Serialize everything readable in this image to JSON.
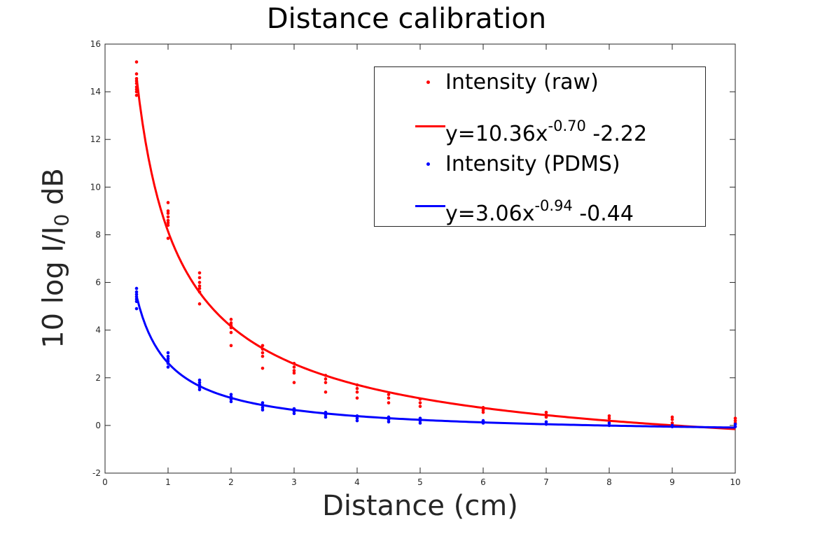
{
  "chart_data": {
    "type": "scatter",
    "title": "Distance calibration",
    "xlabel": "Distance (cm)",
    "ylabel": {
      "prefix": "10 log I/I",
      "subscript": "0",
      "suffix": " dB"
    },
    "xlim": [
      0,
      10
    ],
    "ylim": [
      -2,
      16
    ],
    "x_ticks": [
      0,
      1,
      2,
      3,
      4,
      5,
      6,
      7,
      8,
      9,
      10
    ],
    "y_ticks": [
      -2,
      0,
      2,
      4,
      6,
      8,
      10,
      12,
      14,
      16
    ],
    "grid": false,
    "legend_position": "top-right",
    "series": [
      {
        "name": "Intensity (raw)",
        "kind": "scatter",
        "color": "#ff0000",
        "points": [
          [
            0.5,
            15.25
          ],
          [
            0.5,
            14.75
          ],
          [
            0.5,
            14.55
          ],
          [
            0.5,
            14.45
          ],
          [
            0.5,
            14.35
          ],
          [
            0.5,
            14.2
          ],
          [
            0.5,
            14.1
          ],
          [
            0.5,
            14.0
          ],
          [
            0.5,
            13.85
          ],
          [
            1,
            9.35
          ],
          [
            1,
            9.0
          ],
          [
            1,
            8.9
          ],
          [
            1,
            8.75
          ],
          [
            1,
            8.6
          ],
          [
            1,
            8.5
          ],
          [
            1,
            8.4
          ],
          [
            1,
            7.85
          ],
          [
            1.5,
            6.4
          ],
          [
            1.5,
            6.2
          ],
          [
            1.5,
            6.0
          ],
          [
            1.5,
            5.85
          ],
          [
            1.5,
            5.75
          ],
          [
            1.5,
            5.6
          ],
          [
            1.5,
            5.1
          ],
          [
            2,
            4.45
          ],
          [
            2,
            4.3
          ],
          [
            2,
            4.2
          ],
          [
            2,
            4.1
          ],
          [
            2,
            3.9
          ],
          [
            2,
            3.35
          ],
          [
            2.5,
            3.35
          ],
          [
            2.5,
            3.2
          ],
          [
            2.5,
            3.05
          ],
          [
            2.5,
            2.9
          ],
          [
            2.5,
            2.4
          ],
          [
            3,
            2.6
          ],
          [
            3,
            2.45
          ],
          [
            3,
            2.3
          ],
          [
            3,
            2.2
          ],
          [
            3,
            1.8
          ],
          [
            3.5,
            2.1
          ],
          [
            3.5,
            1.95
          ],
          [
            3.5,
            1.8
          ],
          [
            3.5,
            1.4
          ],
          [
            4,
            1.7
          ],
          [
            4,
            1.55
          ],
          [
            4,
            1.4
          ],
          [
            4,
            1.15
          ],
          [
            4.5,
            1.3
          ],
          [
            4.5,
            1.15
          ],
          [
            4.5,
            0.95
          ],
          [
            5,
            1.1
          ],
          [
            5,
            0.95
          ],
          [
            5,
            0.8
          ],
          [
            6,
            0.75
          ],
          [
            6,
            0.65
          ],
          [
            6,
            0.55
          ],
          [
            7,
            0.55
          ],
          [
            7,
            0.45
          ],
          [
            7,
            0.35
          ],
          [
            8,
            0.4
          ],
          [
            8,
            0.3
          ],
          [
            8,
            0.2
          ],
          [
            9,
            0.35
          ],
          [
            9,
            0.25
          ],
          [
            9,
            0.1
          ],
          [
            10,
            0.3
          ],
          [
            10,
            0.2
          ],
          [
            10,
            0.1
          ]
        ]
      },
      {
        "name": "y=10.36x^-0.70 -2.22",
        "kind": "fit",
        "color": "#ff0000",
        "a": 10.36,
        "b": -0.7,
        "c": -2.22,
        "x_range": [
          0.5,
          10
        ]
      },
      {
        "name": "Intensity (PDMS)",
        "kind": "scatter",
        "color": "#0000ff",
        "points": [
          [
            0.5,
            5.75
          ],
          [
            0.5,
            5.6
          ],
          [
            0.5,
            5.5
          ],
          [
            0.5,
            5.4
          ],
          [
            0.5,
            5.3
          ],
          [
            0.5,
            5.2
          ],
          [
            0.5,
            4.9
          ],
          [
            1,
            3.05
          ],
          [
            1,
            2.9
          ],
          [
            1,
            2.8
          ],
          [
            1,
            2.7
          ],
          [
            1,
            2.6
          ],
          [
            1,
            2.45
          ],
          [
            1.5,
            1.9
          ],
          [
            1.5,
            1.8
          ],
          [
            1.5,
            1.7
          ],
          [
            1.5,
            1.6
          ],
          [
            1.5,
            1.5
          ],
          [
            2,
            1.3
          ],
          [
            2,
            1.2
          ],
          [
            2,
            1.1
          ],
          [
            2,
            1.0
          ],
          [
            2.5,
            0.95
          ],
          [
            2.5,
            0.85
          ],
          [
            2.5,
            0.75
          ],
          [
            2.5,
            0.65
          ],
          [
            3,
            0.7
          ],
          [
            3,
            0.6
          ],
          [
            3,
            0.5
          ],
          [
            3.5,
            0.55
          ],
          [
            3.5,
            0.45
          ],
          [
            3.5,
            0.35
          ],
          [
            4,
            0.4
          ],
          [
            4,
            0.3
          ],
          [
            4,
            0.2
          ],
          [
            4.5,
            0.35
          ],
          [
            4.5,
            0.25
          ],
          [
            4.5,
            0.15
          ],
          [
            5,
            0.3
          ],
          [
            5,
            0.2
          ],
          [
            5,
            0.1
          ],
          [
            6,
            0.2
          ],
          [
            6,
            0.1
          ],
          [
            7,
            0.15
          ],
          [
            7,
            0.05
          ],
          [
            8,
            0.1
          ],
          [
            8,
            0.0
          ],
          [
            9,
            0.0
          ],
          [
            9,
            -0.05
          ],
          [
            10,
            0.05
          ],
          [
            10,
            -0.05
          ]
        ]
      },
      {
        "name": "y=3.06x^-0.94 -0.44",
        "kind": "fit",
        "color": "#0000ff",
        "a": 3.06,
        "b": -0.94,
        "c": -0.44,
        "x_range": [
          0.5,
          10
        ]
      }
    ]
  },
  "legend": {
    "entries": [
      {
        "type": "dot",
        "color": "#ff0000",
        "text": "Intensity (raw)"
      },
      {
        "type": "line",
        "color": "#ff0000",
        "text": "y=10.36x",
        "sup": "-0.70",
        "after": " -2.22"
      },
      {
        "type": "dot",
        "color": "#0000ff",
        "text": "Intensity (PDMS)"
      },
      {
        "type": "line",
        "color": "#0000ff",
        "text": "y=3.06x",
        "sup": "-0.94",
        "after": " -0.44"
      }
    ]
  }
}
